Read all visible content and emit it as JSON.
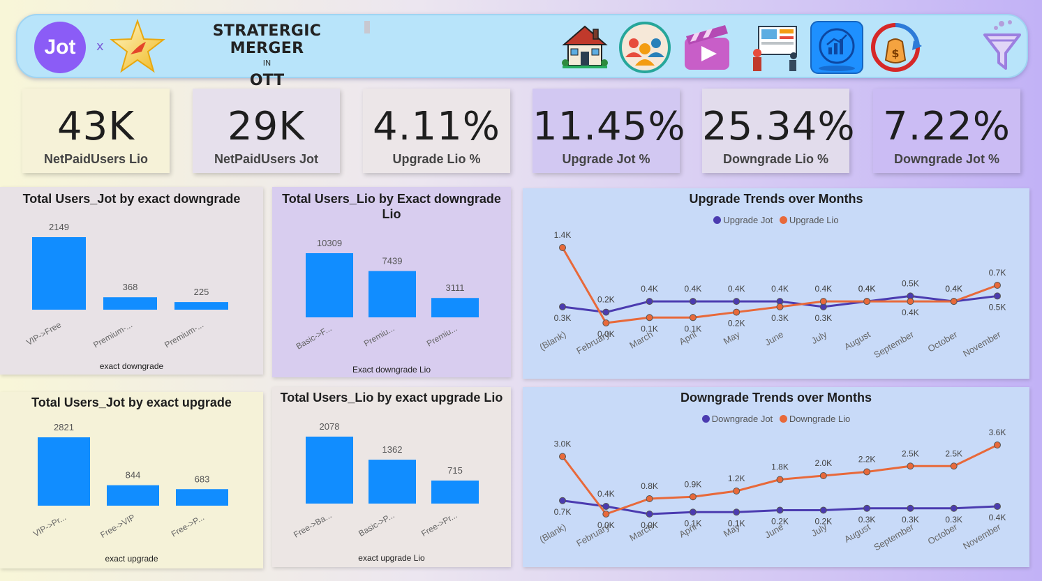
{
  "header": {
    "jot_logo_text": "Jot",
    "separator": "x",
    "title_line1": "STRATERGIC MERGER",
    "title_line2": "IN",
    "title_line3": "OTT",
    "icons": [
      "house-icon",
      "users-group-icon",
      "video-clapper-icon",
      "dashboard-screen-icon",
      "analytics-chart-icon",
      "money-bag-cycle-icon",
      "filter-funnel-icon"
    ]
  },
  "kpis": [
    {
      "value": "43K",
      "label": "NetPaidUsers Lio",
      "bg": "#f6f2d8"
    },
    {
      "value": "29K",
      "label": "NetPaidUsers Jot",
      "bg": "#e6e0ec"
    },
    {
      "value": "4.11%",
      "label": "Upgrade Lio %",
      "bg": "#ece6e8"
    },
    {
      "value": "11.45%",
      "label": "Upgrade Jot %",
      "bg": "#d2c8f2"
    },
    {
      "value": "25.34%",
      "label": "Downgrade Lio %",
      "bg": "#e2dcec"
    },
    {
      "value": "7.22%",
      "label": "Downgrade Jot %",
      "bg": "#cbbcf4"
    }
  ],
  "colors": {
    "bar": "#118dff",
    "jot_line": "#4b3bb0",
    "lio_line": "#e8693a"
  },
  "chart_data": [
    {
      "type": "bar",
      "title": "Total Users_Jot by exact downgrade",
      "xlabel": "exact downgrade",
      "categories": [
        "VIP->Free",
        "Premium-...",
        "Premium-..."
      ],
      "values": [
        2149,
        368,
        225
      ]
    },
    {
      "type": "bar",
      "title": "Total Users_Lio by Exact downgrade Lio",
      "xlabel": "Exact downgrade Lio",
      "categories": [
        "Basic->F...",
        "Premiu...",
        "Premiu..."
      ],
      "values": [
        10309,
        7439,
        3111
      ]
    },
    {
      "type": "bar",
      "title": "Total Users_Jot by exact upgrade",
      "xlabel": "exact upgrade",
      "categories": [
        "VIP->Pr...",
        "Free->VIP",
        "Free->P..."
      ],
      "values": [
        2821,
        844,
        683
      ]
    },
    {
      "type": "bar",
      "title": "Total Users_Lio by exact upgrade Lio",
      "xlabel": "exact upgrade Lio",
      "categories": [
        "Free->Ba...",
        "Basic->P...",
        "Free->Pr..."
      ],
      "values": [
        2078,
        1362,
        715
      ]
    },
    {
      "type": "line",
      "title": "Upgrade Trends over Months",
      "legend": "top-center",
      "categories": [
        "(Blank)",
        "February",
        "March",
        "April",
        "May",
        "June",
        "July",
        "August",
        "September",
        "October",
        "November"
      ],
      "series": [
        {
          "name": "Upgrade Jot",
          "values": [
            0.3,
            0.2,
            0.4,
            0.4,
            0.4,
            0.4,
            0.3,
            0.4,
            0.5,
            0.4,
            0.5
          ],
          "labels": [
            "0.3K",
            "0.2K",
            "0.4K",
            "0.4K",
            "0.4K",
            "0.4K",
            "0.3K",
            "0.4K",
            "0.5K",
            "0.4K",
            "0.5K"
          ]
        },
        {
          "name": "Upgrade Lio",
          "values": [
            1.4,
            0.0,
            0.1,
            0.1,
            0.2,
            0.3,
            0.4,
            0.4,
            0.4,
            0.4,
            0.7
          ],
          "labels": [
            "1.4K",
            "0.0K",
            "0.1K",
            "0.1K",
            "0.2K",
            "0.3K",
            "0.4K",
            "0.4K",
            "0.4K",
            "0.4K",
            "0.7K"
          ]
        }
      ]
    },
    {
      "type": "line",
      "title": "Downgrade Trends over Months",
      "legend": "top-center",
      "categories": [
        "(Blank)",
        "February",
        "March",
        "April",
        "May",
        "June",
        "July",
        "August",
        "September",
        "October",
        "November"
      ],
      "series": [
        {
          "name": "Downgrade Jot",
          "values": [
            0.7,
            0.4,
            0.0,
            0.1,
            0.1,
            0.2,
            0.2,
            0.3,
            0.3,
            0.3,
            0.4
          ],
          "labels": [
            "0.7K",
            "0.4K",
            "0.0K",
            "0.1K",
            "0.1K",
            "0.2K",
            "0.2K",
            "0.3K",
            "0.3K",
            "0.3K",
            "0.4K"
          ]
        },
        {
          "name": "Downgrade Lio",
          "values": [
            3.0,
            0.0,
            0.8,
            0.9,
            1.2,
            1.8,
            2.0,
            2.2,
            2.5,
            2.5,
            3.6
          ],
          "labels": [
            "3.0K",
            "0.0K",
            "0.8K",
            "0.9K",
            "1.2K",
            "1.8K",
            "2.0K",
            "2.2K",
            "2.5K",
            "2.5K",
            "3.6K"
          ]
        }
      ]
    }
  ]
}
